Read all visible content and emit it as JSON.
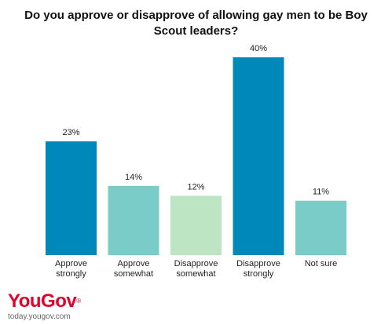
{
  "chart_data": {
    "type": "bar",
    "title": "Do you approve or disapprove of allowing gay men to be Boy Scout leaders?",
    "categories": [
      [
        "Approve",
        "strongly"
      ],
      [
        "Approve",
        "somewhat"
      ],
      [
        "Disapprove",
        "somewhat"
      ],
      [
        "Disapprove",
        "strongly"
      ],
      [
        "Not sure"
      ]
    ],
    "values": [
      23,
      14,
      12,
      40,
      11
    ],
    "value_labels": [
      "23%",
      "14%",
      "12%",
      "40%",
      "11%"
    ],
    "colors": [
      "#0088bb",
      "#7accc8",
      "#bde5c3",
      "#0088bb",
      "#7accc8"
    ],
    "ylim": [
      0,
      40
    ],
    "grid": false,
    "legend": "none"
  },
  "branding": {
    "logo_part1": "You",
    "logo_part2": "Gov",
    "logo_mark": "®",
    "site": "today.yougov.com"
  }
}
